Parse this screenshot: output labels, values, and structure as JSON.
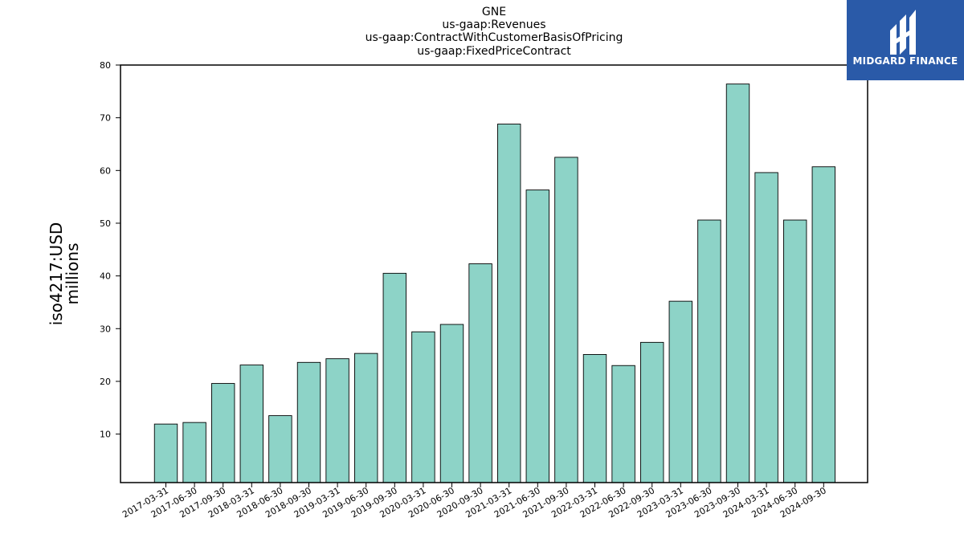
{
  "chart_data": {
    "type": "bar",
    "title_lines": [
      "GNE",
      "us-gaap:Revenues",
      "us-gaap:ContractWithCustomerBasisOfPricing",
      "us-gaap:FixedPriceContract"
    ],
    "ylabel_lines": [
      "iso4217:USD",
      "millions"
    ],
    "xlabel": "",
    "ylim": [
      0.8,
      80
    ],
    "yticks": [
      10,
      20,
      30,
      40,
      50,
      60,
      70,
      80
    ],
    "categories": [
      "2017-03-31",
      "2017-06-30",
      "2017-09-30",
      "2018-03-31",
      "2018-06-30",
      "2018-09-30",
      "2019-03-31",
      "2019-06-30",
      "2019-09-30",
      "2020-03-31",
      "2020-06-30",
      "2020-09-30",
      "2021-03-31",
      "2021-06-30",
      "2021-09-30",
      "2022-03-31",
      "2022-06-30",
      "2022-09-30",
      "2023-03-31",
      "2023-06-30",
      "2023-09-30",
      "2024-03-31",
      "2024-06-30",
      "2024-09-30"
    ],
    "values": [
      11.9,
      12.2,
      19.6,
      23.1,
      13.5,
      23.6,
      24.3,
      25.3,
      40.5,
      29.4,
      30.8,
      42.3,
      68.8,
      56.3,
      62.5,
      25.1,
      23.0,
      27.4,
      35.2,
      50.6,
      76.4,
      59.6,
      50.6,
      60.7
    ],
    "bar_color": "#8dd3c7",
    "bar_edge_color": "#000000",
    "grid": false,
    "legend": "none"
  },
  "logo": {
    "text": "MIDGARD FINANCE",
    "background": "#2a5aa8"
  }
}
